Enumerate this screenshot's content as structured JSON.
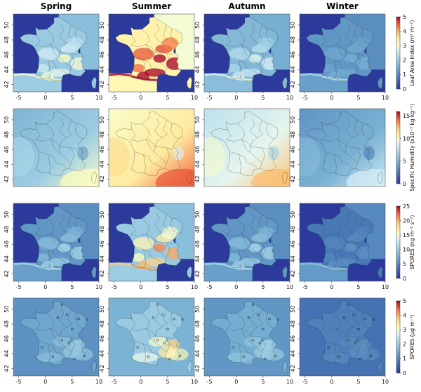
{
  "columns": [
    "Spring",
    "Summer",
    "Autumn",
    "Winter"
  ],
  "x_ticks": [
    "-5",
    "0",
    "5",
    "10"
  ],
  "y_ticks": [
    "42",
    "44",
    "46",
    "48",
    "50"
  ],
  "rows": [
    {
      "id": "lai",
      "colorbar_label": "Leaf Area Index (m² m⁻²)",
      "colorbar_ticks": [
        "0",
        "1",
        "2",
        "3",
        "4",
        "5"
      ],
      "range": [
        0,
        5
      ],
      "style": "land",
      "sea_color": "#2b3a9b",
      "season_mean": [
        2.0,
        3.3,
        1.7,
        1.2
      ],
      "show_x_ticks": true
    },
    {
      "id": "humidity",
      "colorbar_label": "Specific Humidity (x10⁻³ kg kg⁻¹)",
      "colorbar_ticks": [
        "0",
        "5",
        "10",
        "15"
      ],
      "range": [
        0,
        16
      ],
      "style": "humidity",
      "season_mean": [
        6.5,
        11.0,
        9.0,
        5.0
      ],
      "show_x_ticks": false
    },
    {
      "id": "spores-flux",
      "colorbar_label": "SPORES (ng m⁻² s⁻¹)",
      "colorbar_ticks": [
        "0",
        "5",
        "10",
        "15",
        "20",
        "25"
      ],
      "range": [
        0,
        25
      ],
      "style": "land",
      "sea_color": "#2b3a9b",
      "season_mean": [
        6.0,
        10.0,
        6.0,
        4.0
      ],
      "show_x_ticks": true
    },
    {
      "id": "spores-conc",
      "colorbar_label": "SPORES (μg m⁻³)",
      "colorbar_ticks": [
        "0",
        "1",
        "2",
        "3",
        "4",
        "5"
      ],
      "range": [
        0,
        5
      ],
      "style": "conc",
      "season_mean": [
        1.4,
        2.0,
        1.5,
        0.9
      ],
      "show_x_ticks": true
    }
  ],
  "colors": {
    "low": "#3a4fb0",
    "mid": "#f7f7f2",
    "high": "#b01c1c",
    "border": "#444444"
  }
}
